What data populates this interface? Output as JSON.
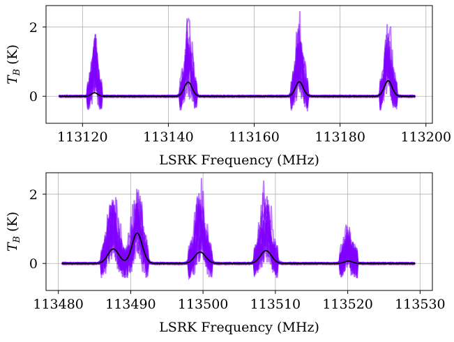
{
  "colors": {
    "spectra": "#8000ff",
    "model": "#000000",
    "grid": "#b0b0b0"
  },
  "chart_data": [
    {
      "type": "line",
      "xlabel": "LSRK Frequency (MHz)",
      "ylabel_main": "T",
      "ylabel_sub": "B",
      "ylabel_unit": " (K)",
      "xlim": [
        113111.5,
        113201.5
      ],
      "ylim": [
        -0.78,
        2.62
      ],
      "xticks": [
        113120,
        113140,
        113160,
        113180,
        113200
      ],
      "yticks": [
        0,
        2
      ],
      "grid": true,
      "x_range": [
        113114.5,
        113197.5
      ],
      "components": [
        {
          "center": 113122.8,
          "width": 0.75,
          "model_peak": 0.1,
          "data_peak": 1.9
        },
        {
          "center": 113144.6,
          "width": 0.9,
          "model_peak": 0.41,
          "data_peak": 2.42
        },
        {
          "center": 113170.5,
          "width": 0.9,
          "model_peak": 0.42,
          "data_peak": 2.45
        },
        {
          "center": 113191.2,
          "width": 0.9,
          "model_peak": 0.45,
          "data_peak": 2.15
        }
      ],
      "series": [
        {
          "kind": "data",
          "draws": 16
        },
        {
          "kind": "model"
        }
      ]
    },
    {
      "type": "line",
      "xlabel": "LSRK Frequency (MHz)",
      "ylabel_main": "T",
      "ylabel_sub": "B",
      "ylabel_unit": " (K)",
      "xlim": [
        113478.3,
        113531.7
      ],
      "ylim": [
        -0.78,
        2.62
      ],
      "xticks": [
        113480,
        113490,
        113500,
        113510,
        113520,
        113530
      ],
      "yticks": [
        0,
        2
      ],
      "grid": true,
      "x_range": [
        113480.5,
        113529.3
      ],
      "components": [
        {
          "center": 113487.6,
          "width": 0.75,
          "model_peak": 0.42,
          "data_peak": 2.42
        },
        {
          "center": 113490.9,
          "width": 0.7,
          "model_peak": 0.88,
          "data_peak": 2.42
        },
        {
          "center": 113499.6,
          "width": 0.75,
          "model_peak": 0.33,
          "data_peak": 2.42
        },
        {
          "center": 113508.7,
          "width": 0.75,
          "model_peak": 0.37,
          "data_peak": 2.38
        },
        {
          "center": 113520.1,
          "width": 0.55,
          "model_peak": 0.07,
          "data_peak": 0.95
        }
      ],
      "series": [
        {
          "kind": "data",
          "draws": 16
        },
        {
          "kind": "model"
        }
      ]
    }
  ]
}
